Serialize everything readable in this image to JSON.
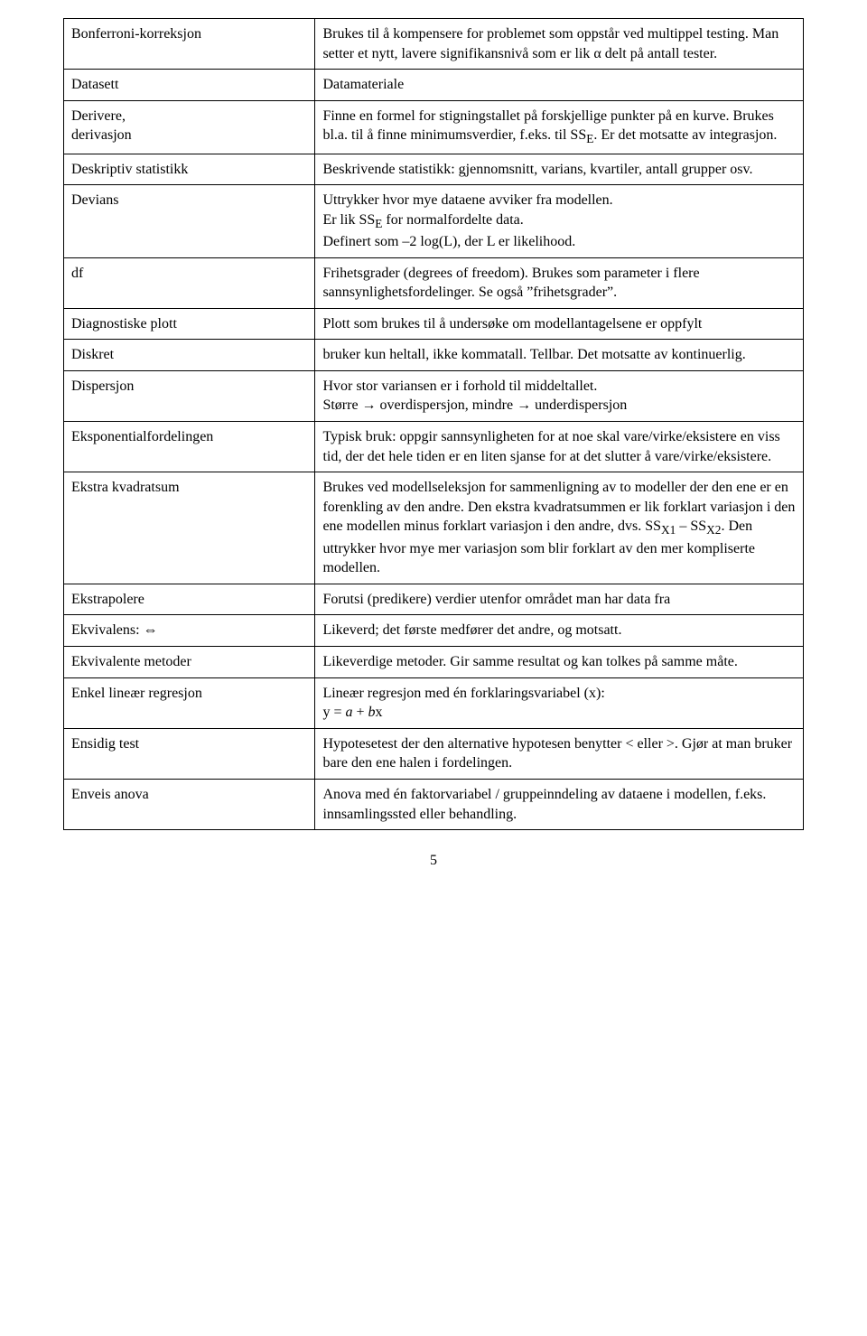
{
  "page_number": "5",
  "rows": [
    {
      "term": "Bonferroni-korreksjon",
      "def": "Brukes til å kompensere for problemet som oppstår ved multippel testing. Man setter et nytt, lavere signifikansnivå som er lik α delt på antall tester."
    },
    {
      "term": "Datasett",
      "def": "Datamateriale"
    },
    {
      "term": "Derivere,\nderivasjon",
      "def_html": "Finne en formel for stigningstallet på forskjellige punkter på en kurve. Brukes bl.a. til å finne minimumsverdier, f.eks. til SS<sub>E</sub>. Er det motsatte av integrasjon."
    },
    {
      "term": "Deskriptiv statistikk",
      "def": "Beskrivende statistikk: gjennomsnitt, varians, kvartiler, antall grupper osv."
    },
    {
      "term": "Devians",
      "def_html": "Uttrykker hvor mye dataene avviker fra modellen.<br>Er lik SS<sub>E</sub> for normalfordelte data.<br>Definert som –2 log(L), der L er likelihood."
    },
    {
      "term": "df",
      "def": "Frihetsgrader (degrees of freedom). Brukes som parameter i flere sannsynlighetsfordelinger. Se også ”frihetsgrader”."
    },
    {
      "term": "Diagnostiske plott",
      "def": "Plott som brukes til å undersøke om modellantagelsene er oppfylt"
    },
    {
      "term": "Diskret",
      "def": "bruker kun heltall, ikke kommatall. Tellbar. Det motsatte av kontinuerlig."
    },
    {
      "term": "Dispersjon",
      "def": "Hvor stor variansen er i forhold til middeltallet.\nStørre → overdispersjon, mindre → underdispersjon"
    },
    {
      "term": "Eksponentialfordelingen",
      "def": "Typisk bruk: oppgir sannsynligheten for at noe skal vare/virke/eksistere en viss tid, der det hele tiden er en liten sjanse for at det slutter å vare/virke/eksistere."
    },
    {
      "term": "Ekstra kvadratsum",
      "def_html": "Brukes ved modellseleksjon for sammenligning av to modeller der den ene er en forenkling av den andre. Den ekstra kvadratsummen er lik forklart variasjon i den ene modellen minus forklart variasjon i den andre, dvs. SS<sub>X1</sub> – SS<sub>X2</sub>. Den uttrykker hvor mye mer variasjon som blir forklart av den mer kompliserte modellen."
    },
    {
      "term": "Ekstrapolere",
      "def": "Forutsi (predikere) verdier utenfor området man har data fra"
    },
    {
      "term": "Ekvivalens: ⇔",
      "def": "Likeverd; det første medfører det andre, og motsatt."
    },
    {
      "term": "Ekvivalente metoder",
      "def": "Likeverdige metoder. Gir samme resultat og kan tolkes på samme måte."
    },
    {
      "term": "Enkel lineær regresjon",
      "def_html": "Lineær regresjon med én forklaringsvariabel (x):<br>y = <i>a</i> + <i>b</i>x"
    },
    {
      "term": "Ensidig test",
      "def": "Hypotesetest der den alternative hypotesen benytter < eller >. Gjør at man bruker bare den ene halen i fordelingen."
    },
    {
      "term": "Enveis anova",
      "def": "Anova med én faktorvariabel / gruppeinndeling av dataene i modellen, f.eks. innsamlingssted eller behandling."
    }
  ]
}
